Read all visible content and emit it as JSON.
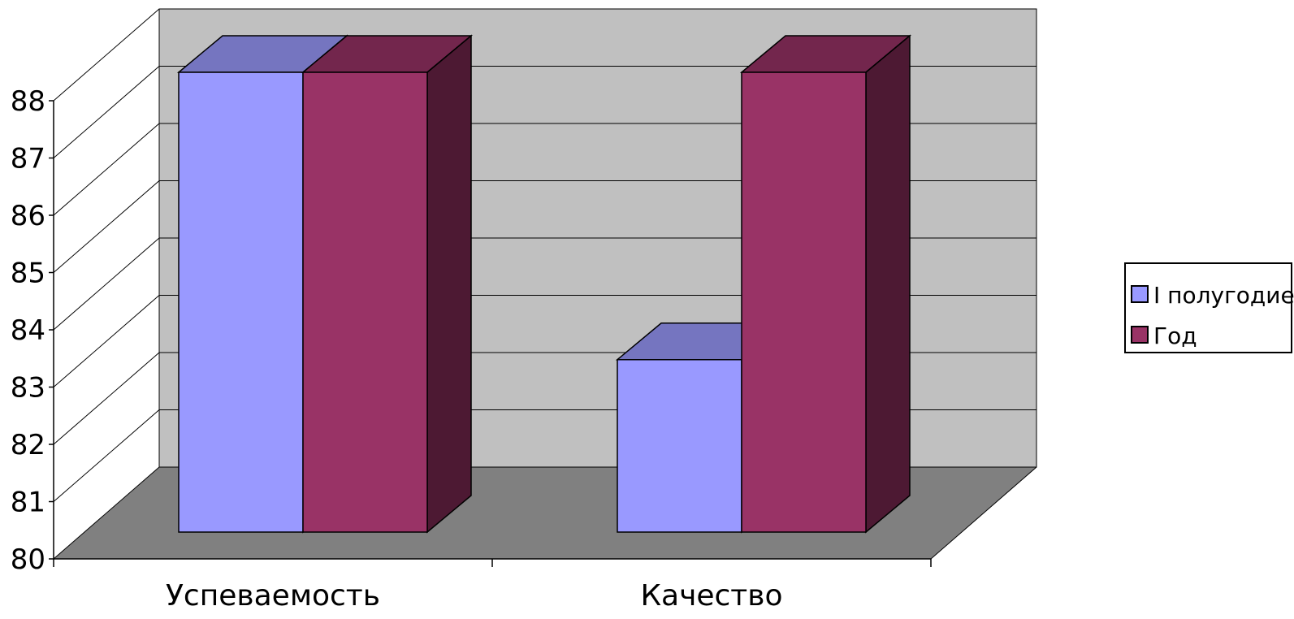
{
  "chart_data": {
    "type": "bar",
    "style": "3d-clustered-column",
    "categories": [
      "Успеваемость",
      "Качество"
    ],
    "series": [
      {
        "name": "I полугодие",
        "values": [
          88,
          83
        ],
        "color": "#9999FF",
        "top_color": "#7575C0",
        "side_color": "#7575C0"
      },
      {
        "name": "Год",
        "values": [
          88,
          88
        ],
        "color": "#993366",
        "top_color": "#73264D",
        "side_color": "#4D1933"
      }
    ],
    "ylim": [
      80,
      88
    ],
    "yticks": [
      "80",
      "81",
      "82",
      "83",
      "84",
      "85",
      "86",
      "87",
      "88"
    ],
    "grid": true,
    "legend_position": "right",
    "colors": {
      "back_wall": "#C0C0C0",
      "floor": "#808080",
      "side_wall": "#FFFFFF"
    }
  }
}
